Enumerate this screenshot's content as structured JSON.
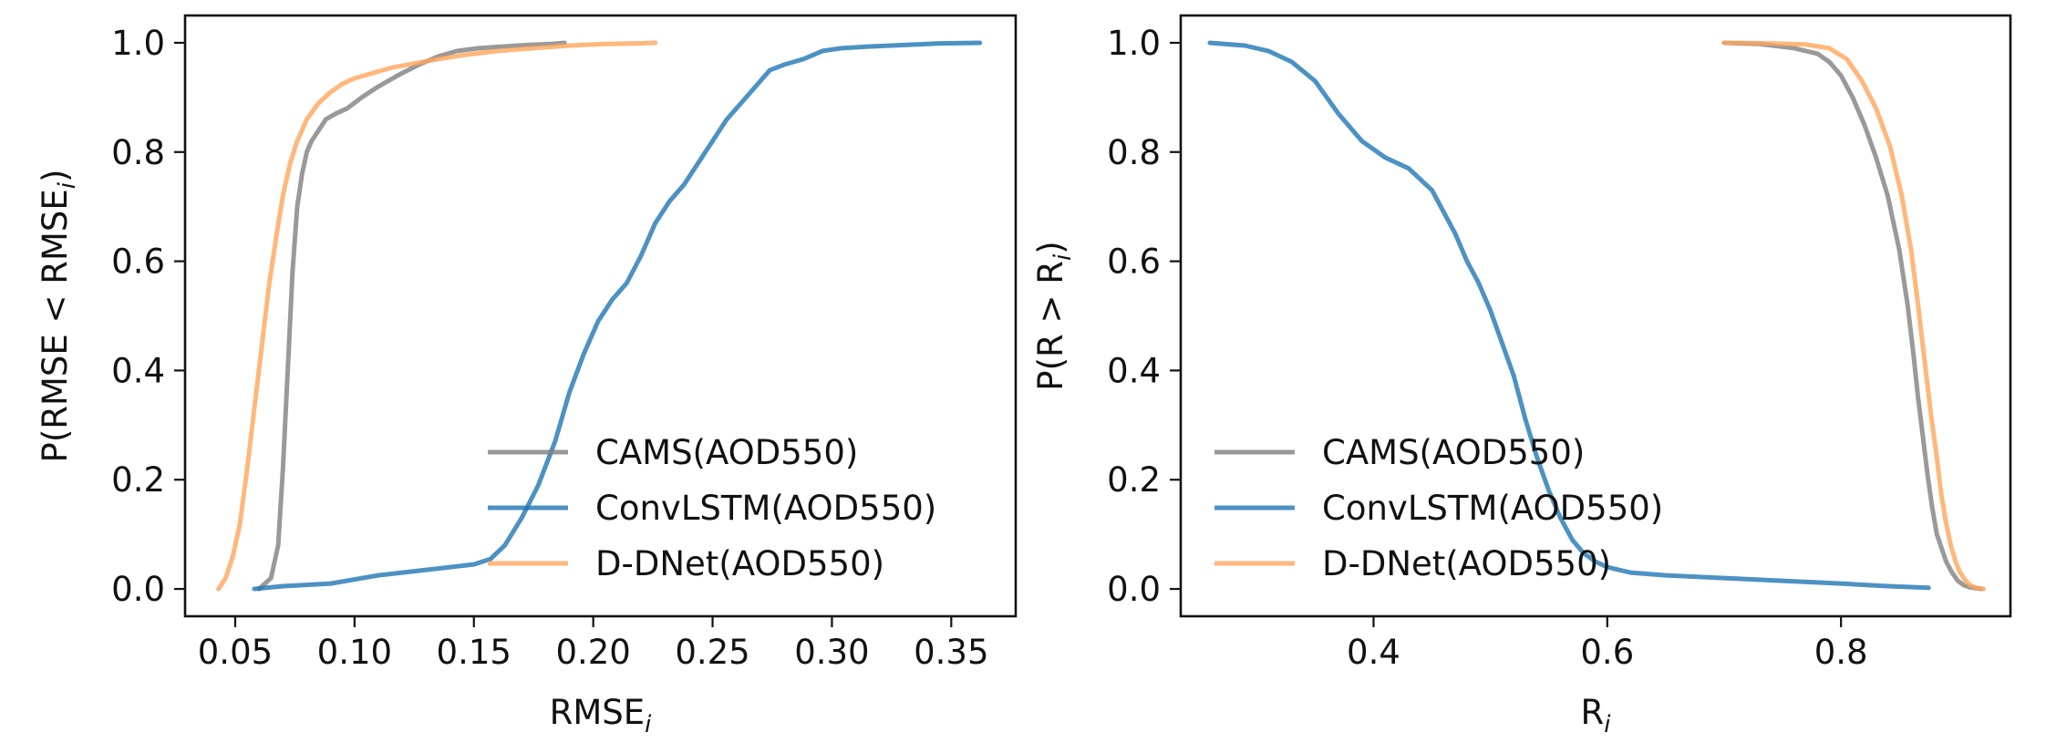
{
  "chart_data": [
    {
      "type": "line",
      "xlabel": "RMSE",
      "xlabel_sub": "i",
      "ylabel": "P(RMSE < RMSE",
      "ylabel_sub": "i",
      "ylabel_close": ")",
      "xlim": [
        0.029,
        0.377
      ],
      "ylim": [
        -0.05,
        1.05
      ],
      "xticks": [
        0.05,
        0.1,
        0.15,
        0.2,
        0.25,
        0.3,
        0.35
      ],
      "xtick_labels": [
        "0.05",
        "0.10",
        "0.15",
        "0.20",
        "0.25",
        "0.30",
        "0.35"
      ],
      "yticks": [
        0.0,
        0.2,
        0.4,
        0.6,
        0.8,
        1.0
      ],
      "ytick_labels": [
        "0.0",
        "0.2",
        "0.4",
        "0.6",
        "0.8",
        "1.0"
      ],
      "grid": false,
      "legend_position": "lower-right",
      "series": [
        {
          "name": "CAMS(AOD550)",
          "color": "#7f7f7f",
          "x": [
            0.06,
            0.065,
            0.068,
            0.07,
            0.072,
            0.074,
            0.076,
            0.078,
            0.08,
            0.082,
            0.085,
            0.088,
            0.092,
            0.097,
            0.103,
            0.11,
            0.118,
            0.127,
            0.135,
            0.143,
            0.152,
            0.162,
            0.172,
            0.182,
            0.188
          ],
          "y": [
            0.0,
            0.02,
            0.08,
            0.22,
            0.4,
            0.58,
            0.7,
            0.76,
            0.8,
            0.82,
            0.84,
            0.86,
            0.87,
            0.88,
            0.9,
            0.92,
            0.94,
            0.96,
            0.975,
            0.985,
            0.99,
            0.993,
            0.996,
            0.998,
            1.0
          ]
        },
        {
          "name": "ConvLSTM(AOD550)",
          "color": "#1f77b4",
          "x": [
            0.058,
            0.07,
            0.09,
            0.11,
            0.13,
            0.15,
            0.157,
            0.163,
            0.17,
            0.177,
            0.184,
            0.19,
            0.196,
            0.202,
            0.208,
            0.214,
            0.22,
            0.226,
            0.232,
            0.238,
            0.244,
            0.25,
            0.256,
            0.262,
            0.268,
            0.274,
            0.28,
            0.288,
            0.296,
            0.304,
            0.315,
            0.33,
            0.345,
            0.362
          ],
          "y": [
            0.0,
            0.005,
            0.01,
            0.025,
            0.035,
            0.045,
            0.055,
            0.08,
            0.13,
            0.19,
            0.27,
            0.36,
            0.43,
            0.49,
            0.53,
            0.56,
            0.61,
            0.67,
            0.71,
            0.74,
            0.78,
            0.82,
            0.86,
            0.89,
            0.92,
            0.95,
            0.96,
            0.97,
            0.985,
            0.99,
            0.993,
            0.996,
            0.999,
            1.0
          ]
        },
        {
          "name": "D-DNet(AOD550)",
          "color": "#ffa55a",
          "x": [
            0.043,
            0.046,
            0.049,
            0.052,
            0.055,
            0.058,
            0.061,
            0.064,
            0.067,
            0.07,
            0.073,
            0.076,
            0.08,
            0.085,
            0.09,
            0.095,
            0.1,
            0.108,
            0.116,
            0.125,
            0.135,
            0.145,
            0.16,
            0.175,
            0.19,
            0.205,
            0.218,
            0.226
          ],
          "y": [
            0.0,
            0.02,
            0.06,
            0.12,
            0.22,
            0.33,
            0.44,
            0.55,
            0.64,
            0.72,
            0.78,
            0.82,
            0.86,
            0.89,
            0.91,
            0.925,
            0.935,
            0.945,
            0.955,
            0.962,
            0.97,
            0.977,
            0.985,
            0.99,
            0.995,
            0.998,
            0.999,
            1.0
          ]
        }
      ]
    },
    {
      "type": "line",
      "xlabel": "R",
      "xlabel_sub": "i",
      "ylabel": "P(R > R",
      "ylabel_sub": "i",
      "ylabel_close": ")",
      "xlim": [
        0.235,
        0.945
      ],
      "ylim": [
        -0.05,
        1.05
      ],
      "xticks": [
        0.4,
        0.6,
        0.8
      ],
      "xtick_labels": [
        "0.4",
        "0.6",
        "0.8"
      ],
      "yticks": [
        0.0,
        0.2,
        0.4,
        0.6,
        0.8,
        1.0
      ],
      "ytick_labels": [
        "0.0",
        "0.2",
        "0.4",
        "0.6",
        "0.8",
        "1.0"
      ],
      "grid": false,
      "legend_position": "lower-left",
      "series": [
        {
          "name": "CAMS(AOD550)",
          "color": "#7f7f7f",
          "x": [
            0.7,
            0.73,
            0.76,
            0.78,
            0.79,
            0.8,
            0.81,
            0.82,
            0.83,
            0.84,
            0.85,
            0.857,
            0.862,
            0.866,
            0.87,
            0.874,
            0.878,
            0.882,
            0.886,
            0.89,
            0.895,
            0.9,
            0.905,
            0.91,
            0.916,
            0.92
          ],
          "y": [
            1.0,
            0.998,
            0.99,
            0.98,
            0.965,
            0.94,
            0.9,
            0.85,
            0.79,
            0.72,
            0.62,
            0.52,
            0.43,
            0.35,
            0.28,
            0.21,
            0.15,
            0.1,
            0.075,
            0.05,
            0.03,
            0.015,
            0.007,
            0.003,
            0.001,
            0.0
          ]
        },
        {
          "name": "ConvLSTM(AOD550)",
          "color": "#1f77b4",
          "x": [
            0.26,
            0.29,
            0.31,
            0.33,
            0.35,
            0.37,
            0.39,
            0.41,
            0.43,
            0.45,
            0.46,
            0.47,
            0.48,
            0.49,
            0.5,
            0.51,
            0.52,
            0.53,
            0.54,
            0.55,
            0.56,
            0.57,
            0.58,
            0.59,
            0.6,
            0.62,
            0.65,
            0.7,
            0.75,
            0.8,
            0.84,
            0.875
          ],
          "y": [
            1.0,
            0.995,
            0.985,
            0.965,
            0.93,
            0.87,
            0.82,
            0.79,
            0.77,
            0.73,
            0.69,
            0.65,
            0.6,
            0.56,
            0.51,
            0.45,
            0.39,
            0.31,
            0.24,
            0.18,
            0.13,
            0.09,
            0.065,
            0.05,
            0.04,
            0.03,
            0.025,
            0.02,
            0.015,
            0.01,
            0.005,
            0.002
          ]
        },
        {
          "name": "D-DNet(AOD550)",
          "color": "#ffa55a",
          "x": [
            0.7,
            0.74,
            0.77,
            0.79,
            0.805,
            0.818,
            0.83,
            0.842,
            0.852,
            0.86,
            0.866,
            0.872,
            0.877,
            0.882,
            0.886,
            0.89,
            0.894,
            0.898,
            0.902,
            0.906,
            0.91,
            0.914,
            0.918,
            0.922
          ],
          "y": [
            1.0,
            0.999,
            0.997,
            0.99,
            0.97,
            0.93,
            0.88,
            0.81,
            0.72,
            0.62,
            0.52,
            0.41,
            0.32,
            0.24,
            0.17,
            0.12,
            0.08,
            0.05,
            0.03,
            0.017,
            0.008,
            0.003,
            0.001,
            0.0
          ]
        }
      ]
    }
  ]
}
